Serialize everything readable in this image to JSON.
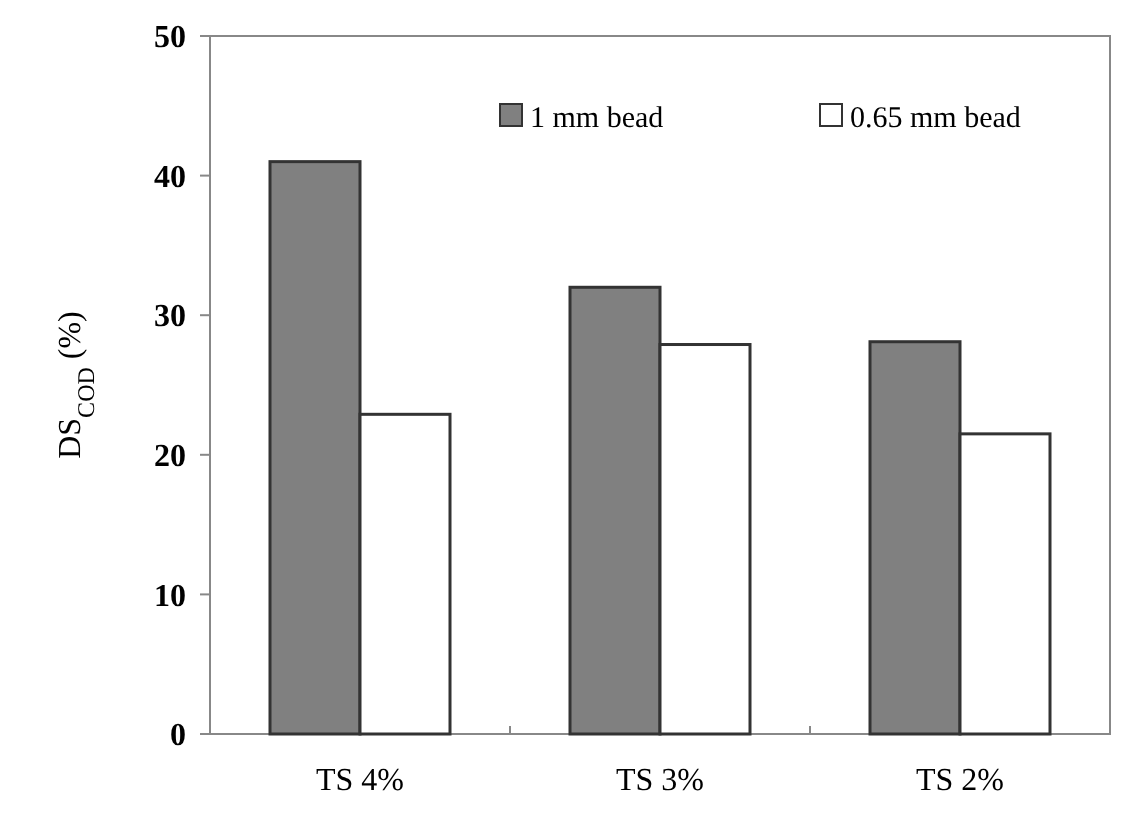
{
  "chart_data": {
    "type": "bar",
    "ylabel": "DS$_{COD}$ (%)",
    "categories": [
      "TS 4%",
      "TS 3%",
      "TS 2%"
    ],
    "series": [
      {
        "name": "1 mm bead",
        "color": "#808080",
        "values": [
          41,
          32,
          28.1
        ]
      },
      {
        "name": "0.65 mm bead",
        "color": "#ffffff",
        "values": [
          22.9,
          27.9,
          21.5
        ]
      }
    ],
    "ylim": [
      0,
      50
    ],
    "yticks": [
      0,
      10,
      20,
      30,
      40,
      50
    ],
    "legend": "top right",
    "grid": false
  }
}
